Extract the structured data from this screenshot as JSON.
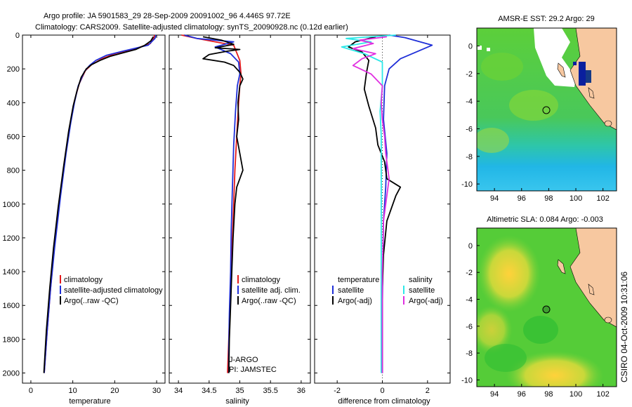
{
  "title_line1": "Argo profile: JA 5901583_29 28-Sep-2009 20091002_96 4.446S 97.72E",
  "title_line2": "Climatology: CARS2009. Satellite-adjusted climatology: synTS_20090928.nc (0.12d earlier)",
  "footer": "CSIRO 04-Oct-2009 10:31:06",
  "colors": {
    "red": "#e41a1c",
    "blue": "#1f2fd8",
    "black": "#000000",
    "cyan": "#2de8e8",
    "magenta": "#e030e0",
    "land": "#f7c8a0"
  },
  "chart_data": [
    {
      "type": "line",
      "id": "temperature",
      "xlabel": "temperature",
      "xlim": [
        -2,
        32
      ],
      "ylim": [
        2060,
        0
      ],
      "xticks": [
        0,
        10,
        20,
        30
      ],
      "yticks": [
        0,
        200,
        400,
        600,
        800,
        1000,
        1200,
        1400,
        1600,
        1800,
        2000
      ],
      "legend": [
        "climatology",
        "satellite-adjusted climatology",
        "Argo(..raw -QC)"
      ],
      "series": [
        {
          "name": "climatology",
          "color": "#e41a1c",
          "points": [
            [
              29.5,
              0
            ],
            [
              29.3,
              20
            ],
            [
              28.5,
              50
            ],
            [
              25,
              80
            ],
            [
              20,
              110
            ],
            [
              17,
              140
            ],
            [
              14.5,
              175
            ],
            [
              13,
              210
            ],
            [
              11.5,
              290
            ],
            [
              10.3,
              400
            ],
            [
              9.2,
              550
            ],
            [
              8,
              750
            ],
            [
              6.8,
              1000
            ],
            [
              5.6,
              1250
            ],
            [
              4.7,
              1500
            ],
            [
              3.9,
              1750
            ],
            [
              3.2,
              2000
            ]
          ]
        },
        {
          "name": "satellite-adjusted climatology",
          "color": "#1f2fd8",
          "points": [
            [
              29.8,
              0
            ],
            [
              29.6,
              20
            ],
            [
              28,
              60
            ],
            [
              22,
              95
            ],
            [
              18,
              120
            ],
            [
              15.5,
              150
            ],
            [
              14,
              180
            ],
            [
              12.8,
              215
            ],
            [
              11.3,
              300
            ],
            [
              10.4,
              400
            ],
            [
              9.5,
              520
            ],
            [
              8.4,
              700
            ],
            [
              7.1,
              950
            ],
            [
              5.7,
              1250
            ],
            [
              4.7,
              1500
            ],
            [
              3.9,
              1750
            ],
            [
              3.2,
              2000
            ]
          ]
        },
        {
          "name": "Argo(..raw -QC)",
          "color": "#000000",
          "points": [
            [
              29.2,
              10
            ],
            [
              28.6,
              35
            ],
            [
              27.2,
              60
            ],
            [
              25,
              85
            ],
            [
              22,
              105
            ],
            [
              19,
              125
            ],
            [
              16.5,
              150
            ],
            [
              14.5,
              175
            ],
            [
              13.2,
              200
            ],
            [
              12,
              250
            ],
            [
              11,
              330
            ],
            [
              10.1,
              420
            ],
            [
              9,
              570
            ],
            [
              7.8,
              780
            ],
            [
              6.5,
              1020
            ],
            [
              5.4,
              1260
            ],
            [
              4.5,
              1500
            ],
            [
              3.7,
              1750
            ],
            [
              3.1,
              2000
            ]
          ]
        }
      ]
    },
    {
      "type": "line",
      "id": "salinity",
      "xlabel": "salinity",
      "xlim": [
        33.85,
        36.15
      ],
      "ylim": [
        2060,
        0
      ],
      "xticks": [
        34,
        34.5,
        35,
        35.5,
        36
      ],
      "yticks": [
        0,
        200,
        400,
        600,
        800,
        1000,
        1200,
        1400,
        1600,
        1800,
        2000
      ],
      "legend": [
        "climatology",
        "satellite adj. clim.",
        "Argo(..raw -QC)"
      ],
      "annotation": [
        "J-ARGO",
        "PI: JAMSTEC"
      ],
      "series": [
        {
          "name": "climatology",
          "color": "#e41a1c",
          "points": [
            [
              34.05,
              0
            ],
            [
              34.3,
              20
            ],
            [
              34.6,
              40
            ],
            [
              34.9,
              60
            ],
            [
              35.0,
              150
            ],
            [
              35.02,
              230
            ],
            [
              35.0,
              300
            ],
            [
              34.98,
              400
            ],
            [
              34.95,
              600
            ],
            [
              34.92,
              800
            ],
            [
              34.9,
              1000
            ],
            [
              34.88,
              1200
            ],
            [
              34.86,
              1400
            ],
            [
              34.84,
              1600
            ],
            [
              34.82,
              1800
            ],
            [
              34.8,
              2000
            ]
          ]
        },
        {
          "name": "satellite adj. clim.",
          "color": "#1f2fd8",
          "points": [
            [
              34.1,
              0
            ],
            [
              34.3,
              20
            ],
            [
              34.9,
              40
            ],
            [
              34.6,
              70
            ],
            [
              34.85,
              110
            ],
            [
              34.98,
              160
            ],
            [
              35.0,
              230
            ],
            [
              34.96,
              300
            ],
            [
              34.93,
              450
            ],
            [
              34.9,
              650
            ],
            [
              34.88,
              900
            ],
            [
              34.86,
              1150
            ],
            [
              34.85,
              1400
            ],
            [
              34.83,
              1650
            ],
            [
              34.82,
              1850
            ],
            [
              34.82,
              2000
            ]
          ]
        },
        {
          "name": "Argo(..raw -QC)",
          "color": "#000000",
          "points": [
            [
              34.4,
              10
            ],
            [
              34.7,
              30
            ],
            [
              34.9,
              55
            ],
            [
              34.6,
              75
            ],
            [
              35.0,
              85
            ],
            [
              34.8,
              95
            ],
            [
              34.5,
              115
            ],
            [
              34.4,
              140
            ],
            [
              34.75,
              160
            ],
            [
              34.9,
              180
            ],
            [
              35.0,
              220
            ],
            [
              35.05,
              260
            ],
            [
              35.0,
              300
            ],
            [
              34.97,
              400
            ],
            [
              34.98,
              500
            ],
            [
              34.95,
              600
            ],
            [
              35.0,
              700
            ],
            [
              35.05,
              800
            ],
            [
              34.95,
              900
            ],
            [
              34.92,
              1000
            ],
            [
              34.89,
              1200
            ],
            [
              34.87,
              1400
            ],
            [
              34.85,
              1600
            ],
            [
              34.83,
              1800
            ],
            [
              34.82,
              2000
            ]
          ]
        }
      ]
    },
    {
      "type": "line",
      "id": "difference",
      "xlabel": "difference from climatology",
      "xlim": [
        -3,
        3
      ],
      "ylim": [
        2060,
        0
      ],
      "xticks": [
        -2,
        0,
        2
      ],
      "yticks": [
        0,
        200,
        400,
        600,
        800,
        1000,
        1200,
        1400,
        1600,
        1800,
        2000
      ],
      "legend_left": [
        "temperature",
        "satellite",
        "Argo(-adj)"
      ],
      "legend_right": [
        "salinity",
        "satellite",
        "Argo(-adj)"
      ],
      "series": [
        {
          "name": "temperature satellite",
          "color": "#1f2fd8",
          "points": [
            [
              0.3,
              0
            ],
            [
              1.0,
              15
            ],
            [
              2.2,
              60
            ],
            [
              1.5,
              100
            ],
            [
              0.8,
              140
            ],
            [
              0.3,
              200
            ],
            [
              0.1,
              300
            ],
            [
              0.05,
              500
            ],
            [
              0.2,
              700
            ],
            [
              0.15,
              900
            ],
            [
              0.05,
              1100
            ],
            [
              0.02,
              1400
            ],
            [
              0.0,
              1600
            ],
            [
              0.0,
              2000
            ]
          ]
        },
        {
          "name": "temperature Argo(-adj)",
          "color": "#000000",
          "points": [
            [
              -0.3,
              10
            ],
            [
              -1.2,
              40
            ],
            [
              -1.5,
              70
            ],
            [
              -0.9,
              100
            ],
            [
              -0.6,
              150
            ],
            [
              -0.7,
              220
            ],
            [
              -0.8,
              320
            ],
            [
              -0.6,
              420
            ],
            [
              -0.3,
              550
            ],
            [
              -0.2,
              650
            ],
            [
              0.1,
              750
            ],
            [
              0.2,
              850
            ],
            [
              0.8,
              900
            ],
            [
              0.6,
              950
            ],
            [
              0.2,
              1100
            ],
            [
              0.05,
              1300
            ],
            [
              0.0,
              1500
            ],
            [
              0.0,
              1700
            ],
            [
              0.0,
              2000
            ]
          ]
        },
        {
          "name": "salinity satellite",
          "color": "#2de8e8",
          "points": [
            [
              0.6,
              0
            ],
            [
              -1.6,
              20
            ],
            [
              -0.5,
              40
            ],
            [
              -1.8,
              70
            ],
            [
              -0.8,
              110
            ],
            [
              0.0,
              160
            ],
            [
              0.0,
              300
            ],
            [
              -0.1,
              450
            ],
            [
              -0.05,
              600
            ],
            [
              -0.05,
              800
            ],
            [
              -0.05,
              1000
            ],
            [
              -0.05,
              1300
            ],
            [
              -0.05,
              1600
            ],
            [
              -0.05,
              2000
            ]
          ]
        },
        {
          "name": "salinity Argo(-adj)",
          "color": "#e030e0",
          "points": [
            [
              0.2,
              10
            ],
            [
              -1.0,
              30
            ],
            [
              -0.4,
              50
            ],
            [
              -1.3,
              80
            ],
            [
              -0.3,
              110
            ],
            [
              -0.9,
              140
            ],
            [
              -1.3,
              180
            ],
            [
              -0.5,
              230
            ],
            [
              0.0,
              300
            ],
            [
              -0.05,
              400
            ],
            [
              0.0,
              500
            ],
            [
              0.1,
              600
            ],
            [
              0.15,
              700
            ],
            [
              0.3,
              850
            ],
            [
              0.2,
              950
            ],
            [
              0.05,
              1100
            ],
            [
              0.0,
              1400
            ],
            [
              0.0,
              1700
            ],
            [
              0.0,
              2000
            ]
          ]
        }
      ]
    },
    {
      "type": "heatmap",
      "id": "sst-map",
      "title": "AMSR-E SST: 29.2  Argo: 29",
      "xlim": [
        92.7,
        103
      ],
      "ylim": [
        -10.5,
        1.3
      ],
      "xticks": [
        94,
        96,
        98,
        100,
        102
      ],
      "yticks": [
        0,
        -2,
        -4,
        -6,
        -8,
        -10
      ],
      "argo_position": [
        97.72,
        -4.446
      ]
    },
    {
      "type": "heatmap",
      "id": "sla-map",
      "title": "Altimetric SLA: 0.084  Argo: -0.003",
      "xlim": [
        92.7,
        103
      ],
      "ylim": [
        -10.5,
        1.3
      ],
      "xticks": [
        94,
        96,
        98,
        100,
        102
      ],
      "yticks": [
        0,
        -2,
        -4,
        -6,
        -8,
        -10
      ],
      "argo_position": [
        97.72,
        -4.446
      ]
    }
  ]
}
